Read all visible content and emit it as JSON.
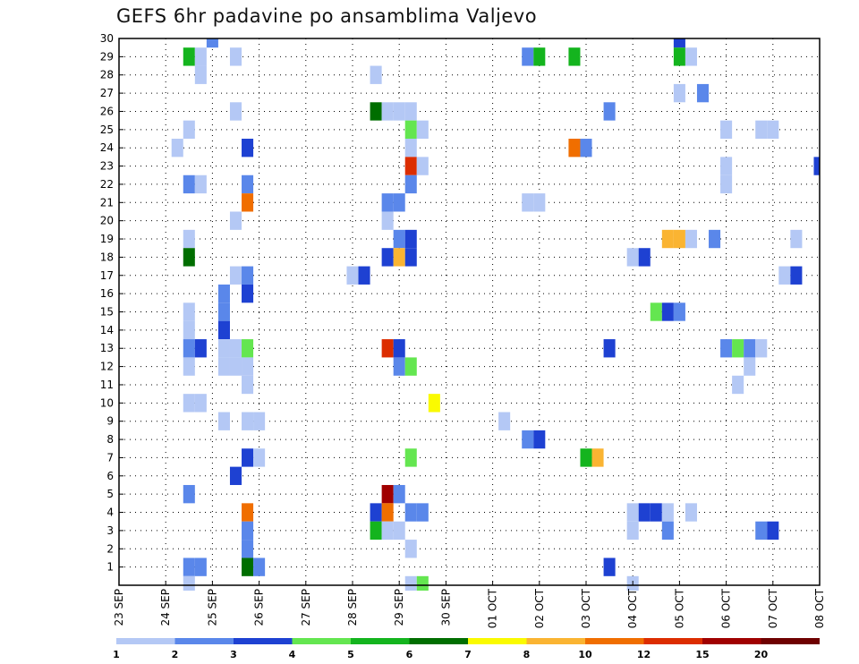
{
  "chart_data": {
    "type": "heatmap",
    "title": "GEFS 6hr padavine po ansamblima Valjevo",
    "y_ticks": [
      "1",
      "2",
      "3",
      "4",
      "5",
      "6",
      "7",
      "8",
      "9",
      "10",
      "11",
      "12",
      "13",
      "14",
      "15",
      "16",
      "17",
      "18",
      "19",
      "20",
      "21",
      "22",
      "23",
      "24",
      "25",
      "26",
      "27",
      "28",
      "29",
      "30"
    ],
    "x_ticks": [
      "23 SEP",
      "24 SEP",
      "25 SEP",
      "26 SEP",
      "27 SEP",
      "28 SEP",
      "29 SEP",
      "30 SEP",
      "01 OCT",
      "02 OCT",
      "03 OCT",
      "04 OCT",
      "05 OCT",
      "06 OCT",
      "07 OCT",
      "08 OCT"
    ],
    "x_range": [
      "23 SEP 00h",
      "08 OCT 00h"
    ],
    "time_step_hours": 6,
    "y_range": [
      0,
      30
    ],
    "grid": true,
    "legend": {
      "position": "bottom",
      "tick_labels": [
        "1",
        "2",
        "3",
        "4",
        "5",
        "6",
        "7",
        "8",
        "10",
        "12",
        "15",
        "20"
      ],
      "colors": [
        "#b4c8f5",
        "#5a87ea",
        "#1e41d2",
        "#64e650",
        "#14b41e",
        "#006e00",
        "#fafa00",
        "#fab432",
        "#f06e00",
        "#dc2d00",
        "#a00000",
        "#6e0000"
      ]
    },
    "cells": [
      {
        "member": 30,
        "time": "25 SEP 00h",
        "class": 2
      },
      {
        "member": 30,
        "time": "05 OCT 00h",
        "class": 3
      },
      {
        "member": 29,
        "time": "24 SEP 12h",
        "class": 5
      },
      {
        "member": 29,
        "time": "24 SEP 18h",
        "class": 1
      },
      {
        "member": 29,
        "time": "25 SEP 12h",
        "class": 1
      },
      {
        "member": 29,
        "time": "01 OCT 18h",
        "class": 2
      },
      {
        "member": 29,
        "time": "02 OCT 00h",
        "class": 5
      },
      {
        "member": 29,
        "time": "02 OCT 18h",
        "class": 5
      },
      {
        "member": 29,
        "time": "05 OCT 00h",
        "class": 5
      },
      {
        "member": 29,
        "time": "05 OCT 06h",
        "class": 1
      },
      {
        "member": 28,
        "time": "24 SEP 18h",
        "class": 1
      },
      {
        "member": 28,
        "time": "28 SEP 12h",
        "class": 1
      },
      {
        "member": 27,
        "time": "05 OCT 00h",
        "class": 1
      },
      {
        "member": 27,
        "time": "05 OCT 12h",
        "class": 2
      },
      {
        "member": 26,
        "time": "25 SEP 12h",
        "class": 1
      },
      {
        "member": 26,
        "time": "28 SEP 12h",
        "class": 6
      },
      {
        "member": 26,
        "time": "28 SEP 18h",
        "class": 1
      },
      {
        "member": 26,
        "time": "29 SEP 00h",
        "class": 1
      },
      {
        "member": 26,
        "time": "29 SEP 06h",
        "class": 1
      },
      {
        "member": 26,
        "time": "03 OCT 12h",
        "class": 2
      },
      {
        "member": 25,
        "time": "24 SEP 12h",
        "class": 1
      },
      {
        "member": 25,
        "time": "29 SEP 06h",
        "class": 4
      },
      {
        "member": 25,
        "time": "29 SEP 12h",
        "class": 1
      },
      {
        "member": 25,
        "time": "06 OCT 00h",
        "class": 1
      },
      {
        "member": 25,
        "time": "06 OCT 18h",
        "class": 1
      },
      {
        "member": 25,
        "time": "07 OCT 00h",
        "class": 1
      },
      {
        "member": 24,
        "time": "24 SEP 06h",
        "class": 1
      },
      {
        "member": 24,
        "time": "25 SEP 18h",
        "class": 3
      },
      {
        "member": 24,
        "time": "29 SEP 06h",
        "class": 1
      },
      {
        "member": 24,
        "time": "02 OCT 18h",
        "class": 9
      },
      {
        "member": 24,
        "time": "03 OCT 00h",
        "class": 2
      },
      {
        "member": 23,
        "time": "29 SEP 06h",
        "class": 10
      },
      {
        "member": 23,
        "time": "29 SEP 12h",
        "class": 1
      },
      {
        "member": 23,
        "time": "06 OCT 00h",
        "class": 1
      },
      {
        "member": 23,
        "time": "08 OCT 00h",
        "class": 3
      },
      {
        "member": 22,
        "time": "24 SEP 12h",
        "class": 2
      },
      {
        "member": 22,
        "time": "24 SEP 18h",
        "class": 1
      },
      {
        "member": 22,
        "time": "25 SEP 18h",
        "class": 2
      },
      {
        "member": 22,
        "time": "29 SEP 06h",
        "class": 2
      },
      {
        "member": 22,
        "time": "06 OCT 00h",
        "class": 1
      },
      {
        "member": 21,
        "time": "25 SEP 18h",
        "class": 9
      },
      {
        "member": 21,
        "time": "28 SEP 18h",
        "class": 2
      },
      {
        "member": 21,
        "time": "29 SEP 00h",
        "class": 2
      },
      {
        "member": 21,
        "time": "01 OCT 18h",
        "class": 1
      },
      {
        "member": 21,
        "time": "02 OCT 00h",
        "class": 1
      },
      {
        "member": 20,
        "time": "25 SEP 12h",
        "class": 1
      },
      {
        "member": 20,
        "time": "28 SEP 18h",
        "class": 1
      },
      {
        "member": 19,
        "time": "24 SEP 12h",
        "class": 1
      },
      {
        "member": 19,
        "time": "29 SEP 00h",
        "class": 2
      },
      {
        "member": 19,
        "time": "29 SEP 06h",
        "class": 3
      },
      {
        "member": 19,
        "time": "04 OCT 18h",
        "class": 8
      },
      {
        "member": 19,
        "time": "05 OCT 00h",
        "class": 8
      },
      {
        "member": 19,
        "time": "05 OCT 06h",
        "class": 1
      },
      {
        "member": 19,
        "time": "05 OCT 18h",
        "class": 2
      },
      {
        "member": 19,
        "time": "07 OCT 12h",
        "class": 1
      },
      {
        "member": 18,
        "time": "24 SEP 12h",
        "class": 6
      },
      {
        "member": 18,
        "time": "28 SEP 18h",
        "class": 3
      },
      {
        "member": 18,
        "time": "29 SEP 00h",
        "class": 8
      },
      {
        "member": 18,
        "time": "29 SEP 06h",
        "class": 3
      },
      {
        "member": 18,
        "time": "04 OCT 00h",
        "class": 1
      },
      {
        "member": 18,
        "time": "04 OCT 06h",
        "class": 3
      },
      {
        "member": 17,
        "time": "25 SEP 12h",
        "class": 1
      },
      {
        "member": 17,
        "time": "25 SEP 18h",
        "class": 2
      },
      {
        "member": 17,
        "time": "28 SEP 00h",
        "class": 1
      },
      {
        "member": 17,
        "time": "28 SEP 06h",
        "class": 3
      },
      {
        "member": 17,
        "time": "07 OCT 06h",
        "class": 1
      },
      {
        "member": 17,
        "time": "07 OCT 12h",
        "class": 3
      },
      {
        "member": 16,
        "time": "25 SEP 06h",
        "class": 2
      },
      {
        "member": 16,
        "time": "25 SEP 18h",
        "class": 3
      },
      {
        "member": 15,
        "time": "24 SEP 12h",
        "class": 1
      },
      {
        "member": 15,
        "time": "25 SEP 06h",
        "class": 2
      },
      {
        "member": 15,
        "time": "04 OCT 12h",
        "class": 4
      },
      {
        "member": 15,
        "time": "04 OCT 18h",
        "class": 3
      },
      {
        "member": 15,
        "time": "05 OCT 00h",
        "class": 2
      },
      {
        "member": 14,
        "time": "24 SEP 12h",
        "class": 1
      },
      {
        "member": 14,
        "time": "25 SEP 06h",
        "class": 3
      },
      {
        "member": 13,
        "time": "24 SEP 12h",
        "class": 2
      },
      {
        "member": 13,
        "time": "24 SEP 18h",
        "class": 3
      },
      {
        "member": 13,
        "time": "25 SEP 06h",
        "class": 1
      },
      {
        "member": 13,
        "time": "25 SEP 12h",
        "class": 1
      },
      {
        "member": 13,
        "time": "25 SEP 18h",
        "class": 4
      },
      {
        "member": 13,
        "time": "28 SEP 18h",
        "class": 10
      },
      {
        "member": 13,
        "time": "29 SEP 00h",
        "class": 3
      },
      {
        "member": 13,
        "time": "03 OCT 12h",
        "class": 3
      },
      {
        "member": 13,
        "time": "06 OCT 00h",
        "class": 2
      },
      {
        "member": 13,
        "time": "06 OCT 06h",
        "class": 4
      },
      {
        "member": 13,
        "time": "06 OCT 12h",
        "class": 2
      },
      {
        "member": 13,
        "time": "06 OCT 18h",
        "class": 1
      },
      {
        "member": 12,
        "time": "24 SEP 12h",
        "class": 1
      },
      {
        "member": 12,
        "time": "25 SEP 06h",
        "class": 1
      },
      {
        "member": 12,
        "time": "25 SEP 12h",
        "class": 1
      },
      {
        "member": 12,
        "time": "25 SEP 18h",
        "class": 1
      },
      {
        "member": 12,
        "time": "29 SEP 00h",
        "class": 2
      },
      {
        "member": 12,
        "time": "29 SEP 06h",
        "class": 4
      },
      {
        "member": 12,
        "time": "06 OCT 12h",
        "class": 1
      },
      {
        "member": 11,
        "time": "25 SEP 18h",
        "class": 1
      },
      {
        "member": 11,
        "time": "06 OCT 06h",
        "class": 1
      },
      {
        "member": 10,
        "time": "24 SEP 12h",
        "class": 1
      },
      {
        "member": 10,
        "time": "24 SEP 18h",
        "class": 1
      },
      {
        "member": 10,
        "time": "29 SEP 18h",
        "class": 7
      },
      {
        "member": 9,
        "time": "25 SEP 06h",
        "class": 1
      },
      {
        "member": 9,
        "time": "25 SEP 18h",
        "class": 1
      },
      {
        "member": 9,
        "time": "26 SEP 00h",
        "class": 1
      },
      {
        "member": 9,
        "time": "01 OCT 06h",
        "class": 1
      },
      {
        "member": 8,
        "time": "01 OCT 18h",
        "class": 2
      },
      {
        "member": 8,
        "time": "02 OCT 00h",
        "class": 3
      },
      {
        "member": 7,
        "time": "25 SEP 18h",
        "class": 3
      },
      {
        "member": 7,
        "time": "26 SEP 00h",
        "class": 1
      },
      {
        "member": 7,
        "time": "29 SEP 06h",
        "class": 4
      },
      {
        "member": 7,
        "time": "03 OCT 00h",
        "class": 5
      },
      {
        "member": 7,
        "time": "03 OCT 06h",
        "class": 8
      },
      {
        "member": 6,
        "time": "25 SEP 12h",
        "class": 3
      },
      {
        "member": 5,
        "time": "24 SEP 12h",
        "class": 2
      },
      {
        "member": 5,
        "time": "28 SEP 18h",
        "class": 11
      },
      {
        "member": 5,
        "time": "29 SEP 00h",
        "class": 2
      },
      {
        "member": 4,
        "time": "25 SEP 18h",
        "class": 9
      },
      {
        "member": 4,
        "time": "28 SEP 12h",
        "class": 3
      },
      {
        "member": 4,
        "time": "28 SEP 18h",
        "class": 9
      },
      {
        "member": 4,
        "time": "29 SEP 06h",
        "class": 2
      },
      {
        "member": 4,
        "time": "29 SEP 12h",
        "class": 2
      },
      {
        "member": 4,
        "time": "04 OCT 00h",
        "class": 1
      },
      {
        "member": 4,
        "time": "04 OCT 06h",
        "class": 3
      },
      {
        "member": 4,
        "time": "04 OCT 12h",
        "class": 3
      },
      {
        "member": 4,
        "time": "04 OCT 18h",
        "class": 1
      },
      {
        "member": 4,
        "time": "05 OCT 06h",
        "class": 1
      },
      {
        "member": 3,
        "time": "25 SEP 18h",
        "class": 2
      },
      {
        "member": 3,
        "time": "28 SEP 12h",
        "class": 5
      },
      {
        "member": 3,
        "time": "28 SEP 18h",
        "class": 1
      },
      {
        "member": 3,
        "time": "29 SEP 00h",
        "class": 1
      },
      {
        "member": 3,
        "time": "04 OCT 00h",
        "class": 1
      },
      {
        "member": 3,
        "time": "04 OCT 18h",
        "class": 2
      },
      {
        "member": 3,
        "time": "06 OCT 18h",
        "class": 2
      },
      {
        "member": 3,
        "time": "07 OCT 00h",
        "class": 3
      },
      {
        "member": 2,
        "time": "25 SEP 18h",
        "class": 2
      },
      {
        "member": 2,
        "time": "29 SEP 06h",
        "class": 1
      },
      {
        "member": 1,
        "time": "24 SEP 12h",
        "class": 2
      },
      {
        "member": 1,
        "time": "24 SEP 18h",
        "class": 2
      },
      {
        "member": 1,
        "time": "25 SEP 18h",
        "class": 6
      },
      {
        "member": 1,
        "time": "26 SEP 00h",
        "class": 2
      },
      {
        "member": 1,
        "time": "03 OCT 12h",
        "class": 3
      },
      {
        "member": 0,
        "time": "24 SEP 12h",
        "class": 1
      },
      {
        "member": 0,
        "time": "29 SEP 06h",
        "class": 1
      },
      {
        "member": 0,
        "time": "29 SEP 12h",
        "class": 4
      },
      {
        "member": 0,
        "time": "04 OCT 00h",
        "class": 1
      }
    ]
  }
}
